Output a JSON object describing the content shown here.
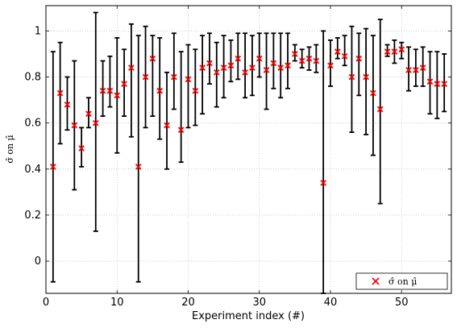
{
  "chart_data": {
    "type": "scatter",
    "xlabel": "Experiment index (#)",
    "ylabel": "σ̂ on μ̂",
    "xlim": [
      0,
      57
    ],
    "ylim": [
      -0.14,
      1.11
    ],
    "xticks": [
      "0",
      "10",
      "20",
      "30",
      "40",
      "50"
    ],
    "xtick_values": [
      0,
      10,
      20,
      30,
      40,
      50
    ],
    "yticks": [
      "0",
      "0.2",
      "0.4",
      "0.6",
      "0.8",
      "1"
    ],
    "ytick_values": [
      0,
      0.2,
      0.4,
      0.6,
      0.8,
      1
    ],
    "grid": true,
    "legend_position": "bottom-right",
    "marker_color": "#ff0000",
    "errorbar_color": "#000000",
    "series": [
      {
        "name": "σ̂ on μ̂",
        "x": [
          1,
          2,
          3,
          4,
          5,
          6,
          7,
          8,
          9,
          10,
          11,
          12,
          13,
          14,
          15,
          16,
          17,
          18,
          19,
          20,
          21,
          22,
          23,
          24,
          25,
          26,
          27,
          28,
          29,
          30,
          31,
          32,
          33,
          34,
          35,
          36,
          37,
          38,
          39,
          40,
          41,
          42,
          43,
          44,
          45,
          46,
          47,
          48,
          49,
          50,
          51,
          52,
          53,
          54,
          55,
          56
        ],
        "y": [
          0.41,
          0.73,
          0.68,
          0.59,
          0.49,
          0.64,
          0.6,
          0.74,
          0.74,
          0.72,
          0.77,
          0.84,
          0.41,
          0.8,
          0.88,
          0.74,
          0.59,
          0.8,
          0.57,
          0.79,
          0.74,
          0.84,
          0.86,
          0.82,
          0.84,
          0.85,
          0.88,
          0.82,
          0.84,
          0.88,
          0.83,
          0.86,
          0.84,
          0.85,
          0.9,
          0.87,
          0.88,
          0.87,
          0.34,
          0.85,
          0.91,
          0.89,
          0.8,
          0.88,
          0.8,
          0.73,
          0.66,
          0.91,
          0.91,
          0.92,
          0.83,
          0.83,
          0.84,
          0.78,
          0.77,
          0.77
        ],
        "lower": [
          -0.09,
          0.51,
          0.57,
          0.31,
          0.41,
          0.58,
          0.13,
          0.63,
          0.67,
          0.47,
          0.63,
          0.54,
          -0.09,
          0.58,
          0.63,
          0.53,
          0.4,
          0.66,
          0.43,
          0.58,
          0.59,
          0.64,
          0.77,
          0.67,
          0.71,
          0.78,
          0.79,
          0.71,
          0.72,
          0.8,
          0.66,
          0.75,
          0.71,
          0.75,
          0.87,
          0.84,
          0.83,
          0.82,
          -0.14,
          0.76,
          0.88,
          0.85,
          0.56,
          0.72,
          0.55,
          0.46,
          0.25,
          0.89,
          0.86,
          0.88,
          0.74,
          0.76,
          0.76,
          0.64,
          0.62,
          0.65
        ],
        "upper": [
          0.91,
          0.95,
          0.8,
          0.87,
          0.58,
          0.71,
          1.08,
          0.87,
          0.89,
          0.97,
          0.92,
          1.03,
          0.98,
          1.02,
          0.98,
          0.97,
          0.82,
          0.99,
          0.91,
          0.94,
          0.92,
          0.98,
          0.99,
          0.95,
          0.98,
          0.96,
          0.99,
          0.99,
          0.98,
          0.99,
          0.99,
          0.99,
          0.99,
          0.99,
          0.94,
          0.92,
          0.93,
          0.94,
          1.0,
          0.96,
          0.97,
          0.98,
          1.02,
          0.99,
          1.01,
          0.98,
          1.05,
          0.94,
          0.96,
          0.95,
          0.93,
          0.92,
          0.93,
          0.91,
          0.91,
          0.9
        ]
      }
    ]
  }
}
